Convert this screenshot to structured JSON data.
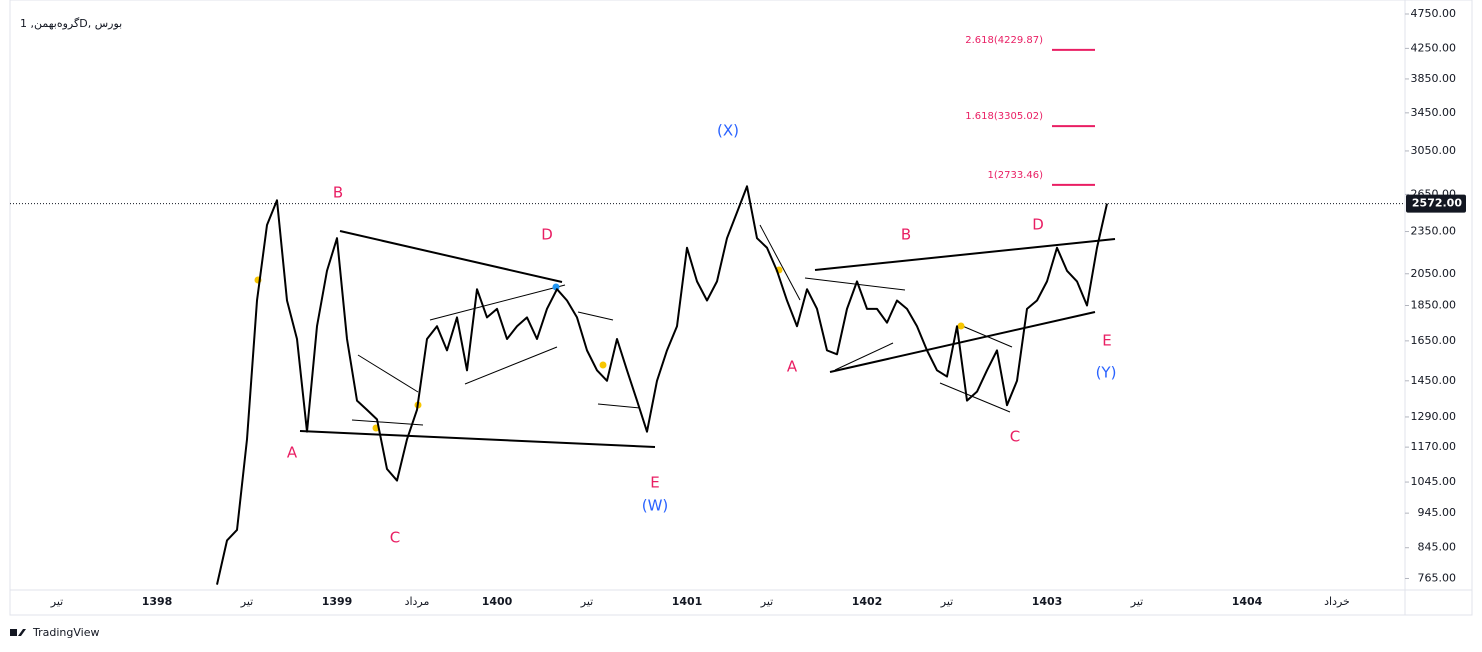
{
  "chart_data": {
    "type": "line",
    "title": "گروه‌بهمن, 1D, بورس",
    "brand": "TradingView",
    "color": "#000000",
    "log_scale": true,
    "grid": false,
    "categories": [
      null,
      null,
      null,
      null,
      null,
      "تیر",
      null,
      null,
      null,
      null,
      null,
      null,
      null,
      null,
      null,
      "1398",
      null,
      null,
      null,
      null,
      null,
      null,
      null,
      null,
      "تیر",
      null,
      null,
      null,
      null,
      null,
      null,
      null,
      null,
      "1399",
      null,
      null,
      null,
      null,
      null,
      null,
      null,
      "مرداد",
      null,
      null,
      null,
      null,
      null,
      null,
      null,
      "1400",
      null,
      null,
      null,
      null,
      null,
      null,
      null,
      null,
      "تیر",
      null,
      null,
      null,
      null,
      null,
      null,
      null,
      null,
      null,
      "1401",
      null,
      null,
      null,
      null,
      null,
      null,
      null,
      "تیر",
      null,
      null,
      null,
      null,
      null,
      null,
      null,
      null,
      null,
      "1402",
      null,
      null,
      null,
      null,
      null,
      null,
      null,
      "تیر",
      null,
      null,
      null,
      null,
      null,
      null,
      null,
      null,
      null,
      "1403",
      null,
      null,
      null,
      null,
      null,
      null,
      null,
      null,
      "تیر",
      null,
      null,
      null,
      null,
      null,
      null,
      null,
      null,
      null,
      null,
      "1404",
      null,
      null,
      null,
      null,
      null,
      null,
      null,
      null,
      "خرداد",
      null,
      null,
      null,
      null,
      null,
      null
    ],
    "values": [
      null,
      null,
      null,
      null,
      null,
      null,
      null,
      null,
      null,
      null,
      null,
      null,
      null,
      null,
      null,
      null,
      null,
      null,
      null,
      null,
      null,
      750,
      865,
      895,
      1200,
      1880,
      2400,
      2600,
      1880,
      1660,
      1230,
      1730,
      2070,
      2300,
      1660,
      1360,
      1320,
      1280,
      1090,
      1050,
      1200,
      1320,
      1660,
      1730,
      1600,
      1780,
      1500,
      1950,
      1780,
      1830,
      1660,
      1730,
      1780,
      1660,
      1830,
      1950,
      1880,
      1780,
      1600,
      1500,
      1450,
      1660,
      1500,
      1360,
      1230,
      1450,
      1600,
      1730,
      2230,
      2000,
      1880,
      2000,
      2300,
      2500,
      2720,
      2300,
      2230,
      2070,
      1880,
      1730,
      1950,
      1830,
      1600,
      1580,
      1830,
      2000,
      1830,
      1830,
      1750,
      1880,
      1830,
      1730,
      1600,
      1500,
      1470,
      1730,
      1360,
      1400,
      1500,
      1600,
      1340,
      1450,
      1830,
      1880,
      2000,
      2230,
      2070,
      2000,
      1850,
      2230,
      2572,
      null,
      null,
      null,
      null,
      null,
      null,
      null,
      null,
      null,
      null,
      null,
      null,
      null,
      null,
      null,
      null,
      null,
      null,
      null,
      null,
      null,
      null,
      null,
      null,
      null,
      null,
      null,
      null,
      null
    ],
    "ylim": [
      737,
      4970
    ],
    "yticks": [
      {
        "value": 765,
        "label": "765.00"
      },
      {
        "value": 845,
        "label": "845.00"
      },
      {
        "value": 945,
        "label": "945.00"
      },
      {
        "value": 1045,
        "label": "1045.00"
      },
      {
        "value": 1170,
        "label": "1170.00"
      },
      {
        "value": 1290,
        "label": "1290.00"
      },
      {
        "value": 1450,
        "label": "1450.00"
      },
      {
        "value": 1650,
        "label": "1650.00"
      },
      {
        "value": 1850,
        "label": "1850.00"
      },
      {
        "value": 2050,
        "label": "2050.00"
      },
      {
        "value": 2350,
        "label": "2350.00"
      },
      {
        "value": 2650,
        "label": "2650.00"
      },
      {
        "value": 3050,
        "label": "3050.00"
      },
      {
        "value": 3450,
        "label": "3450.00"
      },
      {
        "value": 3850,
        "label": "3850.00"
      },
      {
        "value": 4250,
        "label": "4250.00"
      },
      {
        "value": 4750,
        "label": "4750.00"
      }
    ],
    "last_price": {
      "value": 2572,
      "label": "2572.00"
    },
    "fib_levels": [
      {
        "value": 4229.87,
        "label": "2.618(4229.87)"
      },
      {
        "value": 3305.02,
        "label": "1.618(3305.02)"
      },
      {
        "value": 2733.46,
        "label": "1(2733.46)"
      }
    ],
    "wave_labels": [
      "A",
      "B",
      "C",
      "D",
      "E",
      "(W)",
      "(X)",
      "A",
      "B",
      "C",
      "D",
      "E",
      "(Y)"
    ]
  }
}
